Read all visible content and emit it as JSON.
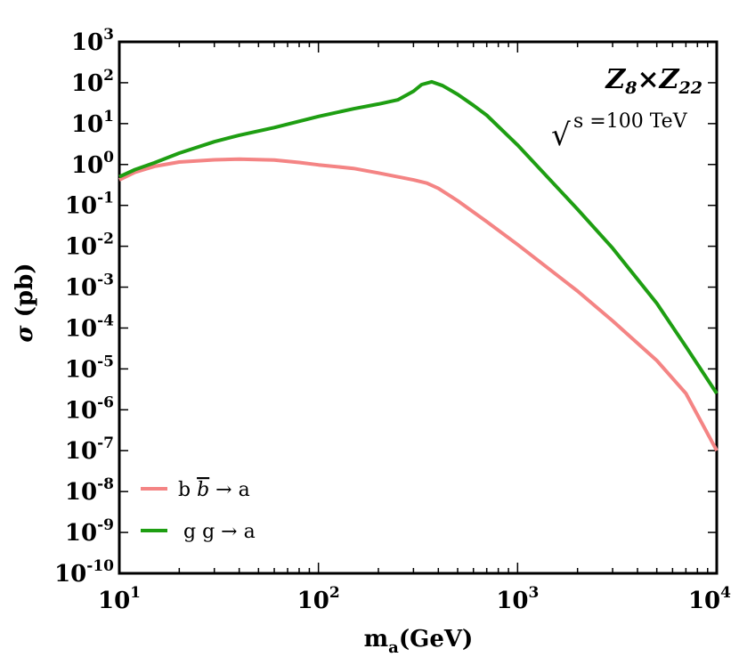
{
  "chart_data": {
    "type": "line",
    "title": "",
    "xlabel": {
      "main": "m",
      "sub": "a",
      "unit": "(GeV)"
    },
    "ylabel": {
      "symbol": "σ",
      "unit": " (pb)"
    },
    "xscale": "log",
    "yscale": "log",
    "xlim": [
      10,
      10000
    ],
    "ylim": [
      1e-10,
      1000
    ],
    "x_ticks": [
      {
        "base": "10",
        "exp": "1"
      },
      {
        "base": "10",
        "exp": "2"
      },
      {
        "base": "10",
        "exp": "3"
      },
      {
        "base": "10",
        "exp": "4"
      }
    ],
    "y_ticks": [
      {
        "base": "10",
        "exp": "3"
      },
      {
        "base": "10",
        "exp": "2"
      },
      {
        "base": "10",
        "exp": "1"
      },
      {
        "base": "10",
        "exp": "0"
      },
      {
        "base": "10",
        "exp": "-1"
      },
      {
        "base": "10",
        "exp": "-2"
      },
      {
        "base": "10",
        "exp": "-3"
      },
      {
        "base": "10",
        "exp": "-4"
      },
      {
        "base": "10",
        "exp": "-5"
      },
      {
        "base": "10",
        "exp": "-6"
      },
      {
        "base": "10",
        "exp": "-7"
      },
      {
        "base": "10",
        "exp": "-8"
      },
      {
        "base": "10",
        "exp": "-9"
      },
      {
        "base": "10",
        "exp": "-10"
      }
    ],
    "annotations": {
      "model": {
        "z1": "Z",
        "z1_sub": "8",
        "times": "×",
        "z2": "Z",
        "z2_sub": "22"
      },
      "energy": {
        "sqrt": "√",
        "s": "s",
        "rest": " =100 TeV"
      }
    },
    "legend_position": "bottom-left",
    "series": [
      {
        "name": "bbar-to-a",
        "legend": {
          "b": "b ",
          "bbar": "b",
          "arrow": " → a"
        },
        "color": "#f48484",
        "points": [
          [
            10,
            0.42
          ],
          [
            12,
            0.65
          ],
          [
            15,
            0.9
          ],
          [
            20,
            1.15
          ],
          [
            30,
            1.3
          ],
          [
            40,
            1.35
          ],
          [
            60,
            1.28
          ],
          [
            80,
            1.12
          ],
          [
            100,
            0.98
          ],
          [
            150,
            0.8
          ],
          [
            200,
            0.62
          ],
          [
            300,
            0.42
          ],
          [
            350,
            0.35
          ],
          [
            400,
            0.26
          ],
          [
            500,
            0.13
          ],
          [
            700,
            0.04
          ],
          [
            1000,
            0.011
          ],
          [
            2000,
            0.0008
          ],
          [
            3000,
            0.00015
          ],
          [
            5000,
            1.6e-05
          ],
          [
            7000,
            2.5e-06
          ],
          [
            10000,
            1e-07
          ]
        ]
      },
      {
        "name": "gg-to-a",
        "legend": {
          "text": "g g → a"
        },
        "color": "#1e9e12",
        "points": [
          [
            10,
            0.5
          ],
          [
            12,
            0.75
          ],
          [
            15,
            1.1
          ],
          [
            20,
            1.9
          ],
          [
            30,
            3.6
          ],
          [
            40,
            5.2
          ],
          [
            60,
            8.0
          ],
          [
            100,
            15
          ],
          [
            150,
            23
          ],
          [
            200,
            30
          ],
          [
            250,
            38
          ],
          [
            300,
            62
          ],
          [
            330,
            90
          ],
          [
            370,
            105
          ],
          [
            420,
            85
          ],
          [
            500,
            52
          ],
          [
            600,
            28
          ],
          [
            700,
            16
          ],
          [
            1000,
            3.0
          ],
          [
            2000,
            0.08
          ],
          [
            3000,
            0.009
          ],
          [
            5000,
            0.0004
          ],
          [
            7000,
            3.5e-05
          ],
          [
            10000,
            2.5e-06
          ]
        ]
      }
    ]
  }
}
